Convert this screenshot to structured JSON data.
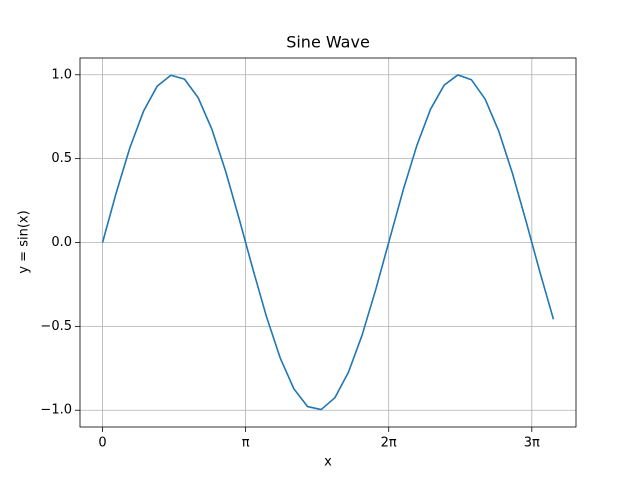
{
  "chart_data": {
    "type": "line",
    "title": "Sine Wave",
    "x_label": "x",
    "y_label": "y = sin(x)",
    "x": [
      0,
      0.3,
      0.6,
      0.9,
      1.2,
      1.5,
      1.8,
      2.1,
      2.4,
      2.7,
      3.0,
      3.3,
      3.6,
      3.9,
      4.2,
      4.5,
      4.8,
      5.1,
      5.4,
      5.7,
      6.0,
      6.3,
      6.6,
      6.9,
      7.2,
      7.5,
      7.8,
      8.1,
      8.4,
      8.7,
      9.0,
      9.3,
      9.6,
      9.9
    ],
    "series": [
      {
        "name": "sin(x)",
        "color": "#1f77b4",
        "values": [
          0,
          0.296,
          0.565,
          0.783,
          0.932,
          0.997,
          0.974,
          0.863,
          0.675,
          0.427,
          0.141,
          -0.158,
          -0.443,
          -0.688,
          -0.872,
          -0.978,
          -0.996,
          -0.926,
          -0.773,
          -0.551,
          -0.279,
          0.017,
          0.312,
          0.578,
          0.794,
          0.938,
          0.999,
          0.97,
          0.855,
          0.663,
          0.412,
          0.125,
          -0.174,
          -0.458
        ]
      }
    ],
    "xlim": [
      -0.495,
      10.395
    ],
    "ylim": [
      -1.1,
      1.1
    ],
    "xticks": [
      0,
      {
        "value": 3.14159,
        "label": "π"
      },
      {
        "value": 6.28319,
        "label": "2π"
      },
      {
        "value": 9.42478,
        "label": "3π"
      }
    ],
    "yticks": [
      {
        "value": -1.0,
        "label": "−1.0"
      },
      {
        "value": -0.5,
        "label": "−0.5"
      },
      {
        "value": 0.0,
        "label": "0.0"
      },
      {
        "value": 0.5,
        "label": "0.5"
      },
      {
        "value": 1.0,
        "label": "1.0"
      }
    ],
    "grid": true
  }
}
